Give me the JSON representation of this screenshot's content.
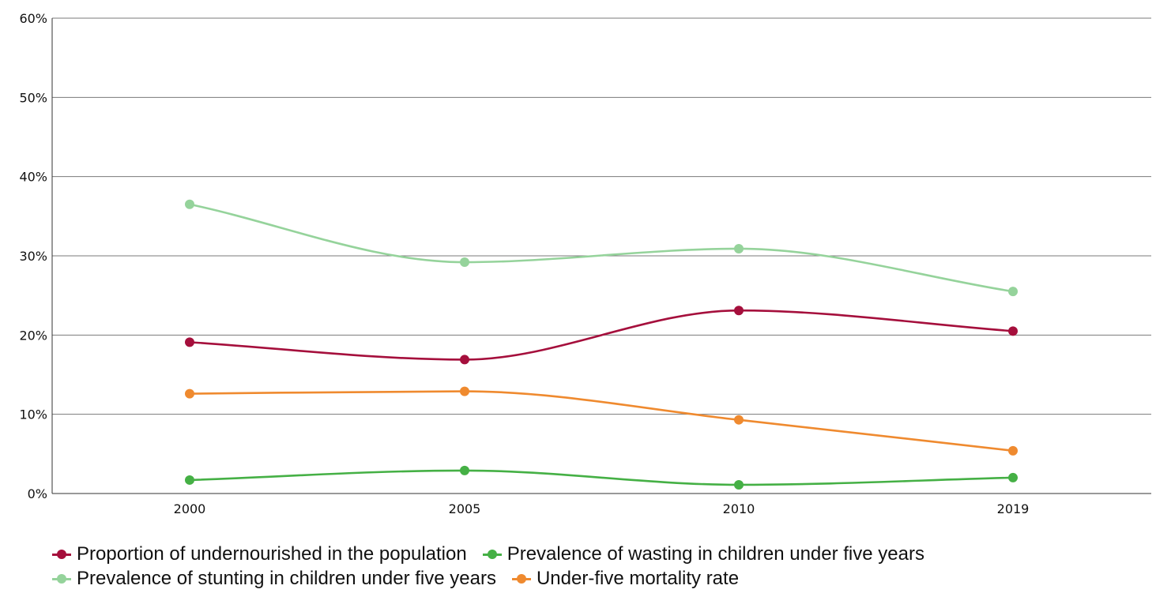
{
  "chart_data": {
    "type": "line",
    "title": "",
    "xlabel": "",
    "ylabel": "",
    "x": [
      "2000",
      "2005",
      "2010",
      "2019"
    ],
    "ylim": [
      0,
      60
    ],
    "yticks": [
      0,
      10,
      20,
      30,
      40,
      50,
      60
    ],
    "ytick_labels": [
      "0%",
      "10%",
      "20%",
      "30%",
      "40%",
      "50%",
      "60%"
    ],
    "grid": "horizontal",
    "legend_position": "bottom",
    "smooth": true,
    "series": [
      {
        "name": "Proportion of undernourished in the population",
        "color": "#a50f3c",
        "values": [
          19.1,
          16.9,
          23.1,
          20.5
        ]
      },
      {
        "name": "Prevalence of wasting in children under five years",
        "color": "#45b045",
        "values": [
          1.7,
          2.9,
          1.1,
          2.0
        ]
      },
      {
        "name": "Prevalence of stunting in children under five years",
        "color": "#95d39b",
        "values": [
          36.5,
          29.2,
          30.9,
          25.5
        ]
      },
      {
        "name": "Under-five mortality rate",
        "color": "#ef8a2f",
        "values": [
          12.6,
          12.9,
          9.3,
          5.4
        ]
      }
    ]
  }
}
